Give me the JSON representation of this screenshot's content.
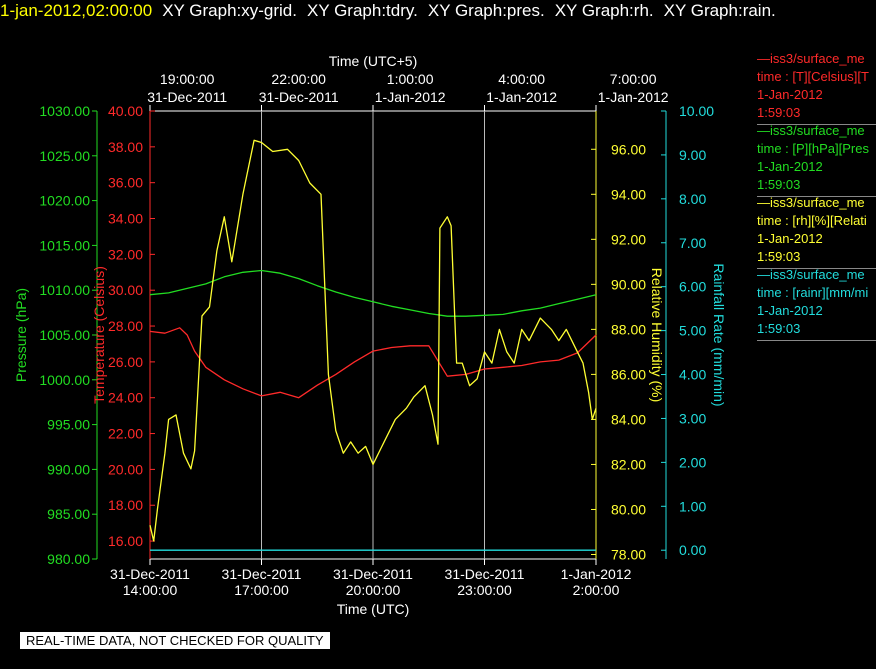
{
  "header": {
    "date": "1-jan-2012,02:00:00",
    "tabs": [
      "XY Graph:xy-grid.",
      "XY Graph:tdry.",
      "XY Graph:pres.",
      "XY Graph:rh.",
      "XY Graph:rain."
    ]
  },
  "legend": [
    {
      "line1": "—iss3/surface_me",
      "line2": "time : [T][Celsius][T",
      "line3": "1-Jan-2012",
      "line4": "1:59:03",
      "color": "#ff2a2a"
    },
    {
      "line1": "—iss3/surface_me",
      "line2": "time : [P][hPa][Pres",
      "line3": "1-Jan-2012",
      "line4": "1:59:03",
      "color": "#22dd22"
    },
    {
      "line1": "—iss3/surface_me",
      "line2": "time : [rh][%][Relati",
      "line3": "1-Jan-2012",
      "line4": "1:59:03",
      "color": "#ffff33"
    },
    {
      "line1": "—iss3/surface_me",
      "line2": "time : [rainr][mm/mi",
      "line3": "1-Jan-2012",
      "line4": "1:59:03",
      "color": "#22dddd"
    }
  ],
  "footer": "REAL-TIME DATA, NOT CHECKED FOR QUALITY",
  "chart_data": {
    "type": "line",
    "top_axis": {
      "title": "Time (UTC+5)",
      "ticks": [
        {
          "l1": "19:00:00",
          "l2": "31-Dec-2011"
        },
        {
          "l1": "22:00:00",
          "l2": "31-Dec-2011"
        },
        {
          "l1": "1:00:00",
          "l2": "1-Jan-2012"
        },
        {
          "l1": "4:00:00",
          "l2": "1-Jan-2012"
        },
        {
          "l1": "7:00:00",
          "l2": "1-Jan-2012"
        }
      ]
    },
    "bottom_axis": {
      "title": "Time (UTC)",
      "range": [
        14.0,
        26.0
      ],
      "ticks": [
        {
          "l1": "31-Dec-2011",
          "l2": "14:00:00",
          "x": 14
        },
        {
          "l1": "31-Dec-2011",
          "l2": "17:00:00",
          "x": 17
        },
        {
          "l1": "31-Dec-2011",
          "l2": "20:00:00",
          "x": 20
        },
        {
          "l1": "31-Dec-2011",
          "l2": "23:00:00",
          "x": 23
        },
        {
          "l1": "1-Jan-2012",
          "l2": "2:00:00",
          "x": 26
        }
      ]
    },
    "grid": true,
    "y_axes": {
      "pressure": {
        "label": "Pressure (hPa)",
        "color": "#22dd22",
        "range": [
          980,
          1030
        ],
        "ticks": [
          "980.00",
          "985.00",
          "990.00",
          "995.00",
          "1000.00",
          "1005.00",
          "1010.00",
          "1015.00",
          "1020.00",
          "1025.00",
          "1030.00"
        ]
      },
      "temperature": {
        "label": "Temperature (Celsius)",
        "color": "#ff2a2a",
        "range": [
          15,
          40
        ],
        "ticks": [
          "16.00",
          "18.00",
          "20.00",
          "22.00",
          "24.00",
          "26.00",
          "28.00",
          "30.00",
          "32.00",
          "34.00",
          "36.00",
          "38.00",
          "40.00"
        ]
      },
      "humidity": {
        "label": "Relative Humidity (%)",
        "color": "#ffff33",
        "range": [
          77.8,
          97.7
        ],
        "ticks": [
          "78.00",
          "80.00",
          "82.00",
          "84.00",
          "86.00",
          "88.00",
          "90.00",
          "92.00",
          "94.00",
          "96.00"
        ]
      },
      "rain": {
        "label": "Rainfall Rate (mm/min)",
        "color": "#22dddd",
        "range": [
          -0.2,
          10.0
        ],
        "ticks": [
          "0.00",
          "1.00",
          "2.00",
          "3.00",
          "4.00",
          "5.00",
          "6.00",
          "7.00",
          "8.00",
          "9.00",
          "10.00"
        ]
      }
    },
    "series": [
      {
        "name": "Pressure",
        "axis": "pressure",
        "color": "#22dd22",
        "x": [
          14.0,
          14.5,
          15.0,
          15.5,
          16.0,
          16.5,
          17.0,
          17.5,
          18.0,
          18.5,
          19.0,
          19.5,
          20.0,
          20.5,
          21.0,
          21.5,
          22.0,
          22.5,
          23.0,
          23.5,
          24.0,
          24.5,
          25.0,
          25.5,
          26.0
        ],
        "y": [
          1009.5,
          1009.7,
          1010.2,
          1010.7,
          1011.5,
          1012.0,
          1012.2,
          1011.9,
          1011.3,
          1010.5,
          1009.8,
          1009.2,
          1008.7,
          1008.2,
          1007.8,
          1007.4,
          1007.1,
          1007.1,
          1007.2,
          1007.3,
          1007.7,
          1008.0,
          1008.5,
          1009.0,
          1009.5
        ]
      },
      {
        "name": "Temperature",
        "axis": "temperature",
        "color": "#ff2a2a",
        "x": [
          14.0,
          14.4,
          14.8,
          15.0,
          15.2,
          15.5,
          16.0,
          16.5,
          17.0,
          17.5,
          18.0,
          18.5,
          19.0,
          19.5,
          20.0,
          20.5,
          21.0,
          21.5,
          22.0,
          22.5,
          23.0,
          23.5,
          24.0,
          24.5,
          25.0,
          25.5,
          26.0
        ],
        "y": [
          27.7,
          27.6,
          27.9,
          27.5,
          26.6,
          25.7,
          25.0,
          24.5,
          24.1,
          24.3,
          24.0,
          24.7,
          25.3,
          26.0,
          26.6,
          26.8,
          26.9,
          26.9,
          25.2,
          25.3,
          25.6,
          25.7,
          25.8,
          26.0,
          26.1,
          26.5,
          27.5
        ]
      },
      {
        "name": "Relative Humidity",
        "axis": "humidity",
        "color": "#ffff33",
        "x": [
          14.0,
          14.1,
          14.2,
          14.4,
          14.5,
          14.7,
          14.9,
          15.1,
          15.2,
          15.4,
          15.6,
          15.8,
          16.0,
          16.2,
          16.5,
          16.8,
          17.0,
          17.3,
          17.7,
          18.0,
          18.3,
          18.6,
          18.8,
          19.0,
          19.2,
          19.4,
          19.6,
          19.8,
          20.0,
          20.3,
          20.6,
          20.9,
          21.1,
          21.4,
          21.6,
          21.75,
          21.8,
          22.0,
          22.1,
          22.25,
          22.4,
          22.6,
          22.8,
          23.0,
          23.2,
          23.4,
          23.6,
          23.8,
          24.0,
          24.2,
          24.5,
          24.8,
          25.0,
          25.2,
          25.5,
          25.65,
          25.8,
          25.9,
          26.0
        ],
        "y": [
          79.3,
          78.6,
          80.0,
          82.5,
          84.0,
          84.2,
          82.5,
          81.8,
          82.6,
          88.6,
          89.0,
          91.5,
          93.0,
          91.0,
          94.0,
          96.4,
          96.3,
          95.9,
          96.0,
          95.5,
          94.5,
          94.0,
          86.0,
          83.5,
          82.5,
          83.0,
          82.5,
          82.8,
          82.0,
          83.0,
          84.0,
          84.5,
          85.0,
          85.5,
          84.2,
          82.9,
          92.5,
          93.0,
          92.6,
          86.5,
          86.5,
          85.5,
          85.8,
          87.0,
          86.5,
          88.0,
          87.0,
          86.5,
          88.0,
          87.5,
          88.5,
          88.0,
          87.5,
          88.0,
          87.0,
          86.5,
          85.2,
          84.0,
          84.5
        ]
      },
      {
        "name": "Rainfall Rate",
        "axis": "rain",
        "color": "#22dddd",
        "x": [
          14.0,
          26.0
        ],
        "y": [
          0.0,
          0.0
        ]
      }
    ]
  }
}
